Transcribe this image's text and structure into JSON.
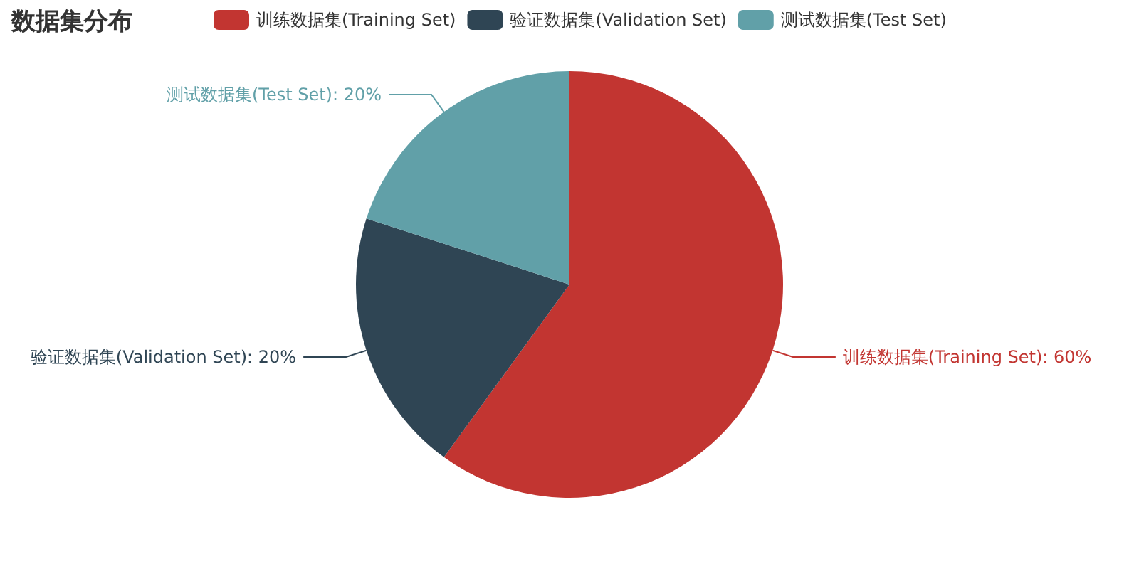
{
  "chart_data": {
    "type": "pie",
    "title": "数据集分布",
    "categories": [
      "训练数据集(Training Set)",
      "验证数据集(Validation Set)",
      "测试数据集(Test Set)"
    ],
    "values": [
      60,
      20,
      20
    ],
    "value_labels": [
      "训练数据集(Training Set): 60%",
      "验证数据集(Validation Set): 20%",
      "测试数据集(Test Set): 20%"
    ],
    "colors": [
      "#c23531",
      "#2f4554",
      "#61a0a8"
    ],
    "legend": "top"
  }
}
